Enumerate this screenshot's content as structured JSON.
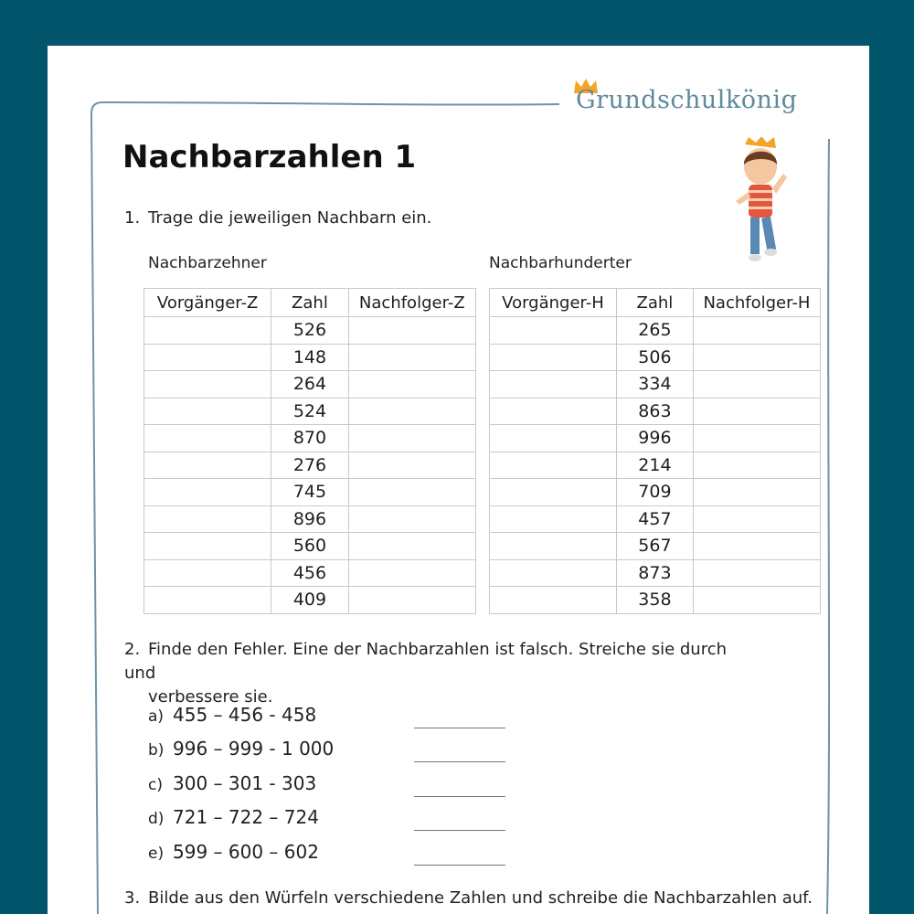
{
  "brand": {
    "name": "Grundschulkönig"
  },
  "title": "Nachbarzahlen 1",
  "task1": {
    "number": "1.",
    "text": "Trage die jeweiligen Nachbarn ein.",
    "table_z": {
      "label": "Nachbarzehner",
      "headers": [
        "Vorgänger-Z",
        "Zahl",
        "Nachfolger-Z"
      ],
      "numbers": [
        "526",
        "148",
        "264",
        "524",
        "870",
        "276",
        "745",
        "896",
        "560",
        "456",
        "409"
      ]
    },
    "table_h": {
      "label": "Nachbarhunderter",
      "headers": [
        "Vorgänger-H",
        "Zahl",
        "Nachfolger-H"
      ],
      "numbers": [
        "265",
        "506",
        "334",
        "863",
        "996",
        "214",
        "709",
        "457",
        "567",
        "873",
        "358"
      ]
    }
  },
  "task2": {
    "number": "2.",
    "text_line1": "Finde den Fehler. Eine der Nachbarzahlen ist falsch. Streiche sie durch und",
    "text_line2": "verbessere sie.",
    "items": [
      {
        "label": "a)",
        "sequence": "455 – 456 - 458"
      },
      {
        "label": "b)",
        "sequence": "996 – 999 - 1 000"
      },
      {
        "label": "c)",
        "sequence": "300 – 301 - 303"
      },
      {
        "label": "d)",
        "sequence": "721 – 722 – 724"
      },
      {
        "label": "e)",
        "sequence": "599 – 600 – 602"
      }
    ]
  },
  "task3": {
    "number": "3.",
    "text": "Bilde aus den Würfeln verschiedene Zahlen und schreibe die Nachbarzahlen auf."
  },
  "colors": {
    "background": "#02556a",
    "frame": "#6f93a6",
    "brand": "#5f8a9d",
    "crown": "#f3a52a"
  },
  "icons": {
    "crown": "crown-icon",
    "mascot": "kid-mascot-icon"
  }
}
